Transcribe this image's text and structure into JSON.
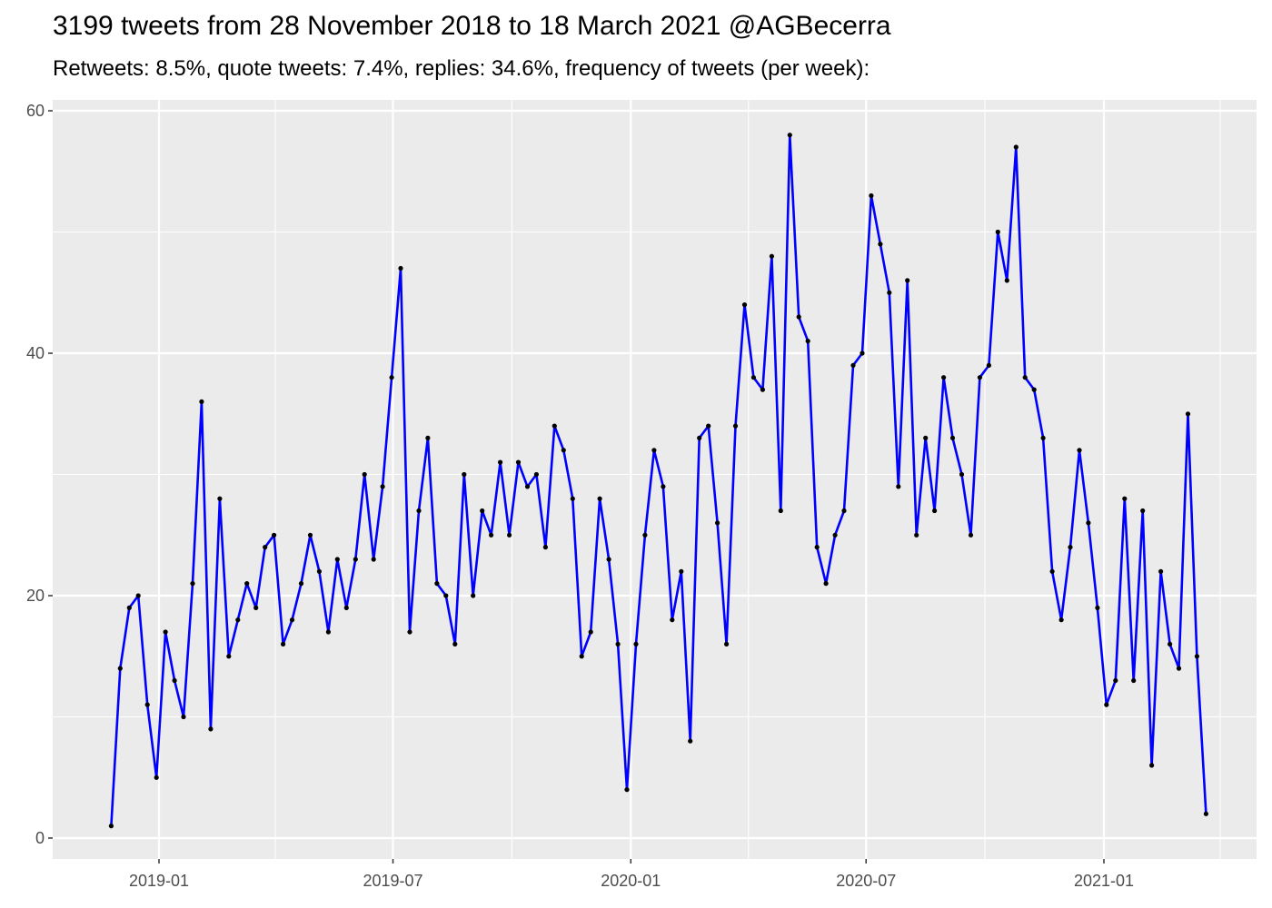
{
  "chart_data": {
    "type": "line",
    "title": "3199 tweets from 28 November 2018 to 18 March 2021 @AGBecerra",
    "subtitle": "Retweets: 8.5%, quote tweets: 7.4%, replies: 34.6%, frequency of tweets (per week):",
    "xlabel": "",
    "ylabel": "",
    "ylim": [
      0,
      60
    ],
    "y_ticks": [
      0,
      20,
      40,
      60
    ],
    "x_ticks": [
      "2019-01",
      "2019-07",
      "2020-01",
      "2020-07",
      "2021-01"
    ],
    "x_range": [
      "2018-11-18",
      "2021-04-01"
    ],
    "grid": true,
    "colors": {
      "line": "#0000ff",
      "point": "#000000",
      "panel": "#ebebeb",
      "grid": "#ffffff"
    },
    "series": [
      {
        "start_week": "2018-11-25",
        "week_step_days": 7,
        "values": [
          1,
          14,
          19,
          20,
          11,
          5,
          17,
          13,
          10,
          21,
          36,
          9,
          28,
          15,
          18,
          21,
          19,
          24,
          25,
          16,
          18,
          21,
          25,
          22,
          17,
          23,
          19,
          23,
          30,
          23,
          29,
          38,
          47,
          17,
          27,
          33,
          21,
          20,
          16,
          30,
          20,
          27,
          25,
          31,
          25,
          31,
          29,
          30,
          24,
          34,
          32,
          28,
          15,
          17,
          28,
          23,
          16,
          4,
          16,
          25,
          32,
          29,
          18,
          22,
          8,
          33,
          34,
          26,
          16,
          34,
          44,
          38,
          37,
          48,
          27,
          58,
          43,
          41,
          24,
          21,
          25,
          27,
          39,
          40,
          53,
          49,
          45,
          29,
          46,
          25,
          33,
          27,
          38,
          33,
          30,
          25,
          38,
          39,
          50,
          46,
          57,
          38,
          37,
          33,
          22,
          18,
          24,
          32,
          26,
          19,
          11,
          13,
          28,
          13,
          27,
          6,
          22,
          16,
          14,
          35,
          15,
          2
        ]
      }
    ]
  }
}
